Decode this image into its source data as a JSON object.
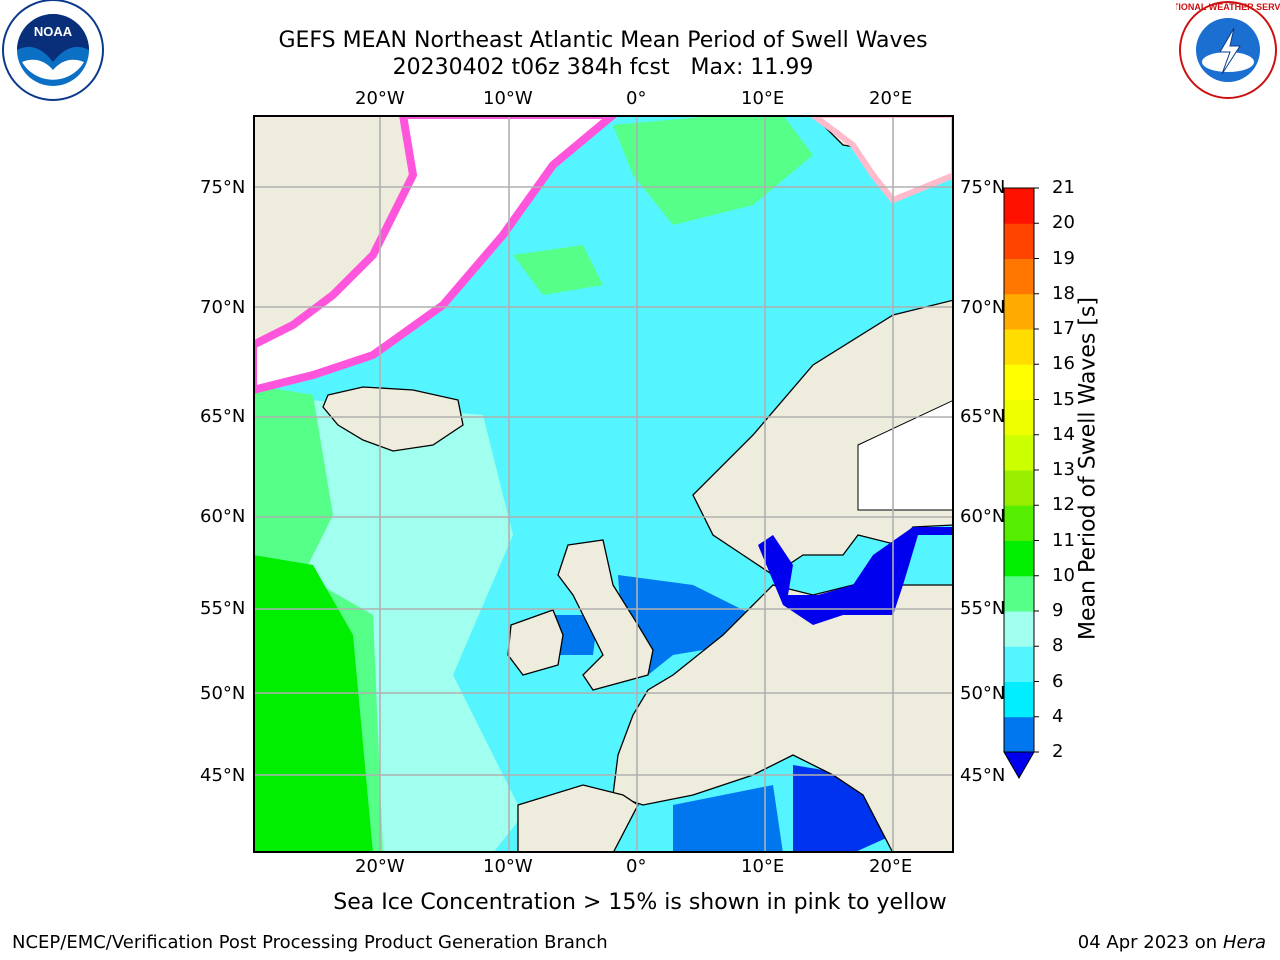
{
  "title": {
    "line1": "GEFS MEAN Northeast Atlantic Mean Period of Swell Waves",
    "line2": "20230402 t06z 384h fcst   Max: 11.99"
  },
  "map": {
    "lon_labels": [
      "20°W",
      "10°W",
      "0°",
      "10°E",
      "20°E"
    ],
    "lat_labels_left": [
      "75°N",
      "70°N",
      "65°N",
      "60°N",
      "55°N",
      "50°N",
      "45°N"
    ],
    "lat_labels_right": [
      "75°N",
      "70°N",
      "65°N",
      "60°N",
      "55°N",
      "50°N",
      "45°N"
    ],
    "colors": {
      "land": "#eeecdd",
      "grid": "#b0b0b0",
      "coast": "#000000"
    }
  },
  "colorbar": {
    "label": "Mean Period of Swell Waves [s]",
    "ticks": [
      "2",
      "4",
      "6",
      "8",
      "9",
      "10",
      "11",
      "12",
      "13",
      "14",
      "15",
      "16",
      "17",
      "18",
      "19",
      "20",
      "21"
    ],
    "colors": [
      "#0033ee",
      "#0077ee",
      "#00eeff",
      "#55f5ff",
      "#a0ffee",
      "#55ff88",
      "#00ee00",
      "#55ee00",
      "#99ee00",
      "#ccff00",
      "#eeff00",
      "#ffff00",
      "#ffdd00",
      "#ffaa00",
      "#ff7700",
      "#ff4400",
      "#ff1100"
    ],
    "under_color": "#0000ee"
  },
  "subcaption": "Sea Ice Concentration > 15% is shown in pink to yellow",
  "footer": {
    "left": "NCEP/EMC/Verification Post Processing Product Generation Branch",
    "right_prefix": "04 Apr 2023 on ",
    "right_machine": "Hera"
  },
  "logos": {
    "left": "NOAA",
    "right": "NATIONAL WEATHER SERVICE"
  }
}
